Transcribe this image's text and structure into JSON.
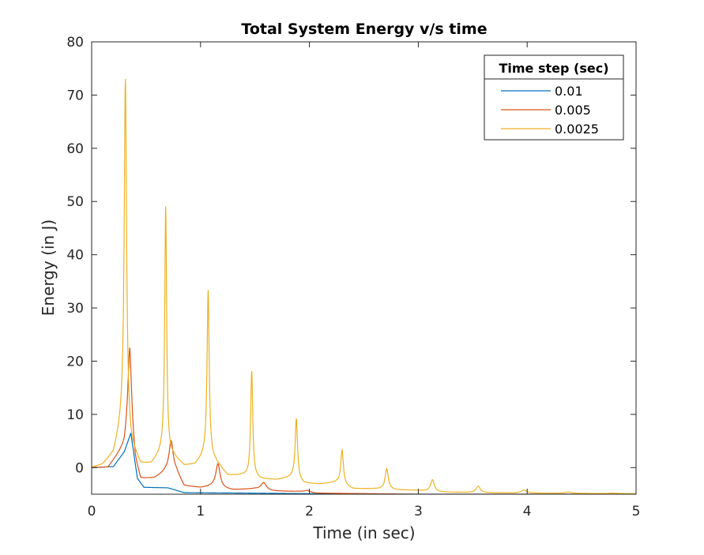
{
  "chart_data": {
    "type": "line",
    "title": "Total System Energy v/s time",
    "xlabel": "Time (in sec)",
    "ylabel": "Energy (in J)",
    "xlim": [
      0,
      5
    ],
    "ylim": [
      -5,
      80
    ],
    "xticks": [
      0,
      1,
      2,
      3,
      4,
      5
    ],
    "yticks": [
      0,
      10,
      20,
      30,
      40,
      50,
      60,
      70,
      80
    ],
    "grid": false,
    "legend": {
      "title": "Time step (sec)",
      "position": "top-right"
    },
    "series": [
      {
        "name": "0.01",
        "color": "#0072BD",
        "peaks": [
          [
            0.36,
            6.5,
            0.1
          ]
        ],
        "baseline": [
          [
            0,
            0
          ],
          [
            0.2,
            0.2
          ],
          [
            0.3,
            3
          ],
          [
            0.36,
            6.5
          ],
          [
            0.42,
            -2
          ],
          [
            0.48,
            -3.7
          ],
          [
            0.7,
            -3.8
          ],
          [
            0.85,
            -4.7
          ],
          [
            1.5,
            -4.8
          ],
          [
            2.5,
            -5
          ],
          [
            5,
            -5
          ]
        ]
      },
      {
        "name": "0.005",
        "color": "#D95319",
        "peaks": [
          [
            0.35,
            22.5,
            0.035
          ],
          [
            0.73,
            5,
            0.04
          ],
          [
            1.16,
            0.7,
            0.04
          ],
          [
            1.58,
            -2.8,
            0.05
          ],
          [
            1.98,
            -4.3,
            0.06
          ]
        ],
        "baseline": [
          [
            0,
            0
          ],
          [
            0.15,
            0
          ],
          [
            0.3,
            4
          ],
          [
            0.35,
            10
          ],
          [
            0.4,
            1
          ],
          [
            0.45,
            -2.3
          ],
          [
            0.58,
            -2
          ],
          [
            0.68,
            -0.8
          ],
          [
            0.78,
            -1
          ],
          [
            0.85,
            -3.5
          ],
          [
            1.0,
            -3.8
          ],
          [
            1.12,
            -3.5
          ],
          [
            1.22,
            -4
          ],
          [
            1.3,
            -4.2
          ],
          [
            1.5,
            -4
          ],
          [
            1.65,
            -4.4
          ],
          [
            1.9,
            -4.5
          ],
          [
            2.05,
            -4.8
          ],
          [
            3,
            -5
          ],
          [
            5,
            -5
          ]
        ]
      },
      {
        "name": "0.0025",
        "color": "#EDB120",
        "peaks": [
          [
            0.31,
            73,
            0.022
          ],
          [
            0.68,
            49,
            0.018
          ],
          [
            1.07,
            33.3,
            0.02
          ],
          [
            1.47,
            18.1,
            0.02
          ],
          [
            1.88,
            9.2,
            0.022
          ],
          [
            2.3,
            3.3,
            0.025
          ],
          [
            2.71,
            -0.2,
            0.03
          ],
          [
            3.13,
            -2.3,
            0.035
          ],
          [
            3.55,
            -3.5,
            0.04
          ],
          [
            3.97,
            -4.2,
            0.05
          ],
          [
            4.38,
            -4.6,
            0.06
          ],
          [
            4.79,
            -4.8,
            0.07
          ]
        ],
        "baseline": [
          [
            0,
            0
          ],
          [
            0.1,
            0.5
          ],
          [
            0.2,
            2.5
          ],
          [
            0.3,
            10
          ],
          [
            0.36,
            4
          ],
          [
            0.45,
            0.5
          ],
          [
            0.55,
            0.6
          ],
          [
            0.65,
            3
          ],
          [
            0.75,
            2
          ],
          [
            0.85,
            0.3
          ],
          [
            0.95,
            0.5
          ],
          [
            1.05,
            2.5
          ],
          [
            1.15,
            0.8
          ],
          [
            1.25,
            -1.5
          ],
          [
            1.4,
            -1.5
          ],
          [
            1.55,
            -2.2
          ],
          [
            1.7,
            -2.3
          ],
          [
            1.85,
            -1.8
          ],
          [
            1.95,
            -3
          ],
          [
            2.1,
            -3.1
          ],
          [
            2.25,
            -2.8
          ],
          [
            2.4,
            -4
          ],
          [
            2.6,
            -4
          ],
          [
            2.8,
            -4.2
          ],
          [
            3.0,
            -4.3
          ],
          [
            3.2,
            -4.6
          ],
          [
            3.5,
            -4.7
          ],
          [
            4,
            -4.8
          ],
          [
            5,
            -4.9
          ]
        ]
      }
    ]
  }
}
